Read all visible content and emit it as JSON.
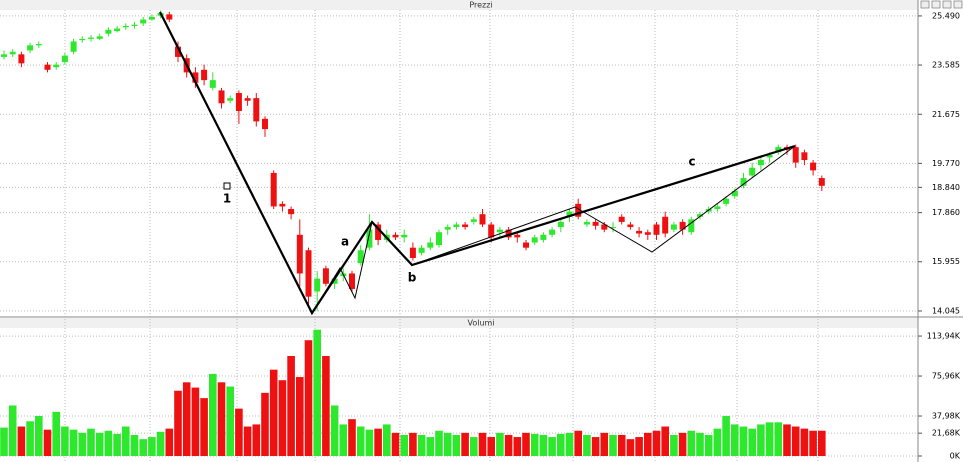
{
  "chart_data": [
    {
      "type": "candlestick",
      "title": "Prezzi",
      "open": [
        23900,
        24000,
        24000,
        24150,
        24350,
        23600,
        23500,
        23700,
        24100,
        24550,
        24600,
        24600,
        24800,
        24900,
        25050,
        25100,
        25200,
        25350,
        25500,
        25550,
        24300,
        23850,
        23300,
        23400,
        22700,
        22600,
        22200,
        22500,
        22300,
        22300,
        21500,
        19400,
        18200,
        18000,
        17000,
        16400,
        14800,
        15700,
        15100,
        15400,
        15500,
        15900,
        16500,
        17400,
        16800,
        17000,
        16900,
        16500,
        16300,
        16500,
        16600,
        17200,
        17300,
        17400,
        17500,
        17800,
        17400,
        17100,
        17200,
        17000,
        16700,
        16700,
        16800,
        17000,
        17300,
        17700,
        18200,
        17400,
        17500,
        17400,
        17300,
        17700,
        17400,
        17150,
        17100,
        17400,
        17700,
        17200,
        17500,
        17100,
        17700,
        17900,
        18000,
        18200,
        18500,
        18900,
        19300,
        19700,
        20000,
        20200,
        20400,
        20400,
        20200,
        19800,
        19200
      ],
      "high": [
        24150,
        24200,
        24100,
        24450,
        24500,
        23700,
        23700,
        24050,
        24600,
        24700,
        24750,
        24800,
        25050,
        25100,
        25200,
        25250,
        25450,
        25550,
        25700,
        25650,
        24500,
        24000,
        23500,
        23600,
        23300,
        22700,
        22400,
        22600,
        22400,
        22500,
        21600,
        19500,
        18300,
        18100,
        17600,
        16500,
        15600,
        15800,
        15400,
        15700,
        15600,
        16600,
        17800,
        17500,
        17200,
        17100,
        17200,
        16700,
        16600,
        16900,
        17200,
        17400,
        17500,
        17500,
        17700,
        18000,
        17500,
        17300,
        17300,
        17100,
        16800,
        17000,
        17100,
        17300,
        17600,
        18000,
        18400,
        17600,
        17600,
        17500,
        17500,
        17800,
        17500,
        17300,
        17200,
        17500,
        17900,
        17500,
        17600,
        17700,
        17900,
        18100,
        18200,
        18500,
        18800,
        19400,
        19800,
        20000,
        20200,
        20500,
        20500,
        20500,
        20300,
        19900,
        19300
      ],
      "low": [
        23800,
        23900,
        23500,
        24050,
        24250,
        23300,
        23400,
        23600,
        24000,
        24450,
        24500,
        24550,
        24700,
        24850,
        24950,
        25000,
        25100,
        25300,
        25400,
        25250,
        23700,
        23100,
        22700,
        22800,
        22600,
        21900,
        22100,
        21300,
        22000,
        21200,
        20800,
        18000,
        17900,
        17600,
        15000,
        14200,
        14050,
        15000,
        14900,
        15200,
        14800,
        15800,
        16400,
        16600,
        16700,
        16800,
        16700,
        16000,
        16200,
        16400,
        16500,
        17000,
        17200,
        17200,
        17400,
        17300,
        16700,
        16900,
        16800,
        16700,
        16400,
        16600,
        16700,
        16900,
        17100,
        17500,
        17600,
        17300,
        17200,
        17100,
        17100,
        17400,
        17200,
        16900,
        16800,
        16800,
        16900,
        17100,
        17000,
        17000,
        17600,
        17800,
        17900,
        18100,
        18400,
        18800,
        19200,
        19500,
        19800,
        20100,
        20100,
        19600,
        19700,
        19300,
        18700
      ],
      "close": [
        24000,
        24100,
        23650,
        24350,
        24400,
        23400,
        23600,
        23950,
        24500,
        24600,
        24650,
        24700,
        24950,
        25000,
        25100,
        25150,
        25350,
        25450,
        25600,
        25350,
        23900,
        23300,
        22900,
        23000,
        23000,
        22100,
        22300,
        21800,
        22200,
        21400,
        21100,
        18100,
        18100,
        17800,
        15500,
        14600,
        15300,
        15100,
        15300,
        15500,
        14900,
        16400,
        17200,
        16800,
        17000,
        16900,
        17000,
        16100,
        16500,
        16700,
        17100,
        17300,
        17400,
        17300,
        17600,
        17400,
        16900,
        17200,
        16900,
        16900,
        16500,
        16900,
        17000,
        17200,
        17500,
        17900,
        17700,
        17500,
        17350,
        17200,
        17300,
        17500,
        17300,
        17050,
        17000,
        17000,
        17050,
        17400,
        17200,
        17600,
        17800,
        18000,
        18100,
        18400,
        18700,
        19200,
        19600,
        19900,
        20100,
        20400,
        20300,
        19800,
        19900,
        19500,
        18900
      ],
      "up_color": "#2ee82e",
      "down_color": "#ee1111",
      "ylim": [
        13850,
        25720
      ],
      "yticks": [
        {
          "value": 14045,
          "label": "14.045"
        },
        {
          "value": 15955,
          "label": "15.955"
        },
        {
          "value": 17860,
          "label": "17.860"
        },
        {
          "value": 18840,
          "label": "18.840"
        },
        {
          "value": 19770,
          "label": "19.770"
        },
        {
          "value": 21675,
          "label": "21.675"
        },
        {
          "value": 23585,
          "label": "23.585"
        },
        {
          "value": 25490,
          "label": "25.490"
        }
      ],
      "grid": true,
      "annotations": [
        "1",
        "a",
        "b",
        "c"
      ]
    },
    {
      "type": "bar",
      "title": "Volumi",
      "values": [
        27000,
        48000,
        28000,
        33000,
        38000,
        25000,
        42000,
        28000,
        25000,
        22000,
        26000,
        22000,
        24000,
        21000,
        28000,
        20000,
        16000,
        18000,
        23000,
        26000,
        62000,
        70000,
        65000,
        55000,
        78000,
        70000,
        66000,
        45000,
        28000,
        30000,
        60000,
        82000,
        72000,
        95000,
        75000,
        110000,
        120000,
        95000,
        48000,
        30000,
        35000,
        28000,
        25000,
        26000,
        30000,
        22000,
        20000,
        22000,
        20000,
        18000,
        24000,
        22000,
        20000,
        22000,
        18000,
        22000,
        18000,
        22000,
        20000,
        18000,
        22000,
        21000,
        20000,
        18000,
        21000,
        22000,
        24000,
        20000,
        18000,
        22000,
        20000,
        20000,
        16000,
        18000,
        22000,
        24000,
        28000,
        20000,
        22000,
        24000,
        22000,
        20000,
        26000,
        38000,
        30000,
        28000,
        26000,
        30000,
        32000,
        32000,
        30000,
        28000,
        26000,
        24000,
        24000
      ],
      "ylim": [
        0,
        119700
      ],
      "yticks": [
        {
          "value": 0,
          "label": "0K"
        },
        {
          "value": 21680,
          "label": "21,68K"
        },
        {
          "value": 37980,
          "label": "37,98K"
        },
        {
          "value": 75960,
          "label": "75,96K"
        },
        {
          "value": 113940,
          "label": "113,94K"
        }
      ],
      "grid": true
    }
  ]
}
